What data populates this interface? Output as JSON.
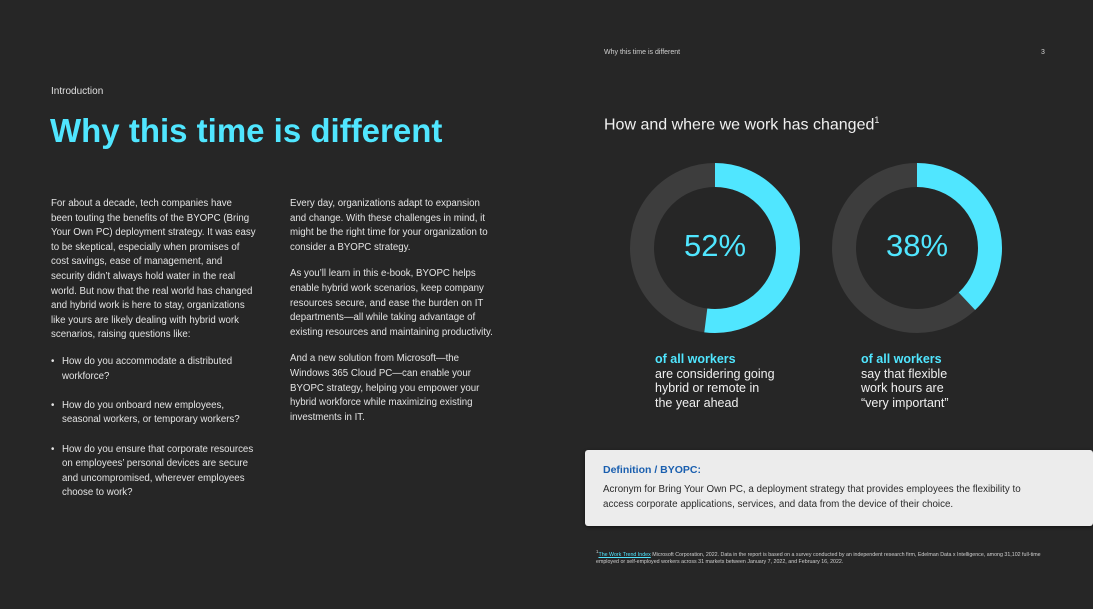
{
  "header": {
    "running_title": "Why this time is different",
    "page_number": "3"
  },
  "intro": {
    "section_label": "Introduction",
    "title": "Why this time is different"
  },
  "left_column": {
    "paragraph": "For about a decade, tech companies have been touting the benefits of the BYOPC (Bring Your Own PC) deployment strategy. It was easy to be skeptical, especially when promises of cost savings, ease of management, and security didn’t always hold water in the real world. But now that the real world has changed and hybrid work is here to stay, organizations like yours are likely dealing with hybrid work scenarios, raising questions like:",
    "bullets": [
      "How do you accommodate a distributed workforce?",
      "How do you onboard new employees, seasonal workers, or temporary workers?",
      "How do you ensure that corporate resources on employees’ personal devices are secure and uncompromised, wherever employees choose to work?"
    ]
  },
  "middle_column": {
    "paragraphs": [
      "Every day, organizations adapt to expansion and change. With these challenges in mind, it might be the right time for your organization to consider a BYOPC strategy.",
      "As you’ll learn in this e-book, BYOPC helps enable hybrid work scenarios, keep company resources secure, and ease the burden on IT departments—all while taking advantage of existing resources and maintaining productivity.",
      "And a new solution from Microsoft—the Windows 365 Cloud PC—can enable your BYOPC strategy, helping you empower your hybrid workforce while maximizing existing investments in IT."
    ]
  },
  "chart_data": {
    "type": "pie",
    "title": "How and where we work has changed",
    "title_footnote_mark": "1",
    "colors": {
      "fill": "#50e6ff",
      "track": "#3d3d3d"
    },
    "stats": [
      {
        "value": 52,
        "label": "52%",
        "caption_accent": "of all workers",
        "caption_lines": [
          "are considering going",
          "hybrid or remote in",
          "the year ahead"
        ]
      },
      {
        "value": 38,
        "label": "38%",
        "caption_accent": "of all workers",
        "caption_lines": [
          "say that flexible",
          "work hours are",
          "“very important”"
        ]
      }
    ]
  },
  "definition": {
    "title": "Definition / BYOPC:",
    "text": "Acronym for Bring Your Own PC, a deployment strategy that provides employees the flexibility to access corporate applications, services, and data from the device of their choice."
  },
  "footnote": {
    "mark": "1",
    "link_text": "The Work Trend Index",
    "text": " Microsoft Corporation, 2022. Data in the report is based on a survey conducted by an independent research firm, Edelman Data x Intelligence, among 31,102 full-time employed or self-employed workers across 31 markets between January 7, 2022, and February 16, 2022."
  }
}
